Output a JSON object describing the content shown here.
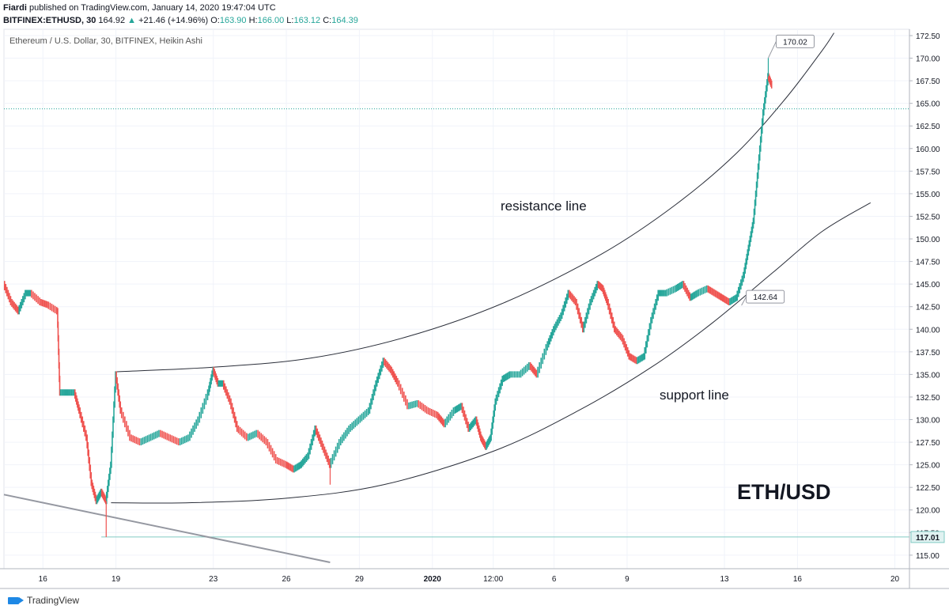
{
  "header": {
    "author": "Fiardi",
    "published": "published on TradingView.com, January 14, 2020 19:47:04 UTC"
  },
  "quote": {
    "symbol": "BITFINEX:ETHUSD, 30",
    "last": "164.92",
    "arrow": "▲",
    "change": "+21.46 (+14.96%)",
    "o_label": "O:",
    "o_value": "163.90",
    "h_label": "H:",
    "h_value": "166.00",
    "l_label": "L:",
    "l_value": "163.12",
    "c_label": "C:",
    "c_value": "164.39"
  },
  "footer": {
    "brand": "TradingView"
  },
  "colors": {
    "up": "#26a69a",
    "down": "#ef5350",
    "grid": "#f0f3fa",
    "price_line": "#26a69a",
    "axis_text": "#131722"
  },
  "chart_data": {
    "type": "line",
    "title": "Ethereum / U.S. Dollar, 30, BITFINEX, Heikin Ashi",
    "watermark": "ETH/USD",
    "ylim": [
      113.5,
      173.2
    ],
    "y_ticks": [
      "115.00",
      "117.50",
      "120.00",
      "122.50",
      "125.00",
      "127.50",
      "130.00",
      "132.50",
      "135.00",
      "137.50",
      "140.00",
      "142.50",
      "145.00",
      "147.50",
      "150.00",
      "152.50",
      "155.00",
      "157.50",
      "160.00",
      "162.50",
      "165.00",
      "167.50",
      "170.00",
      "172.50"
    ],
    "x_ticks": [
      {
        "label": "16",
        "day": 1
      },
      {
        "label": "19",
        "day": 4
      },
      {
        "label": "23",
        "day": 8
      },
      {
        "label": "26",
        "day": 11
      },
      {
        "label": "29",
        "day": 14
      },
      {
        "label": "2020",
        "day": 17
      },
      {
        "label": "12:00",
        "day": 19.5
      },
      {
        "label": "6",
        "day": 22
      },
      {
        "label": "9",
        "day": 25
      },
      {
        "label": "13",
        "day": 29
      },
      {
        "label": "16",
        "day": 32
      },
      {
        "label": "20",
        "day": 36
      }
    ],
    "x_range": [
      -0.6,
      36.6
    ],
    "series": [
      {
        "values": [
          [
            -0.6,
            145
          ],
          [
            -0.3,
            143
          ],
          [
            0,
            142
          ],
          [
            0.3,
            144
          ],
          [
            0.5,
            144
          ],
          [
            0.9,
            143
          ],
          [
            1.2,
            142.7
          ],
          [
            1.6,
            142
          ],
          [
            1.7,
            133
          ],
          [
            2.0,
            133
          ],
          [
            2.3,
            133
          ],
          [
            2.5,
            131
          ],
          [
            2.8,
            128
          ],
          [
            3.0,
            123
          ],
          [
            3.2,
            121
          ],
          [
            3.4,
            122
          ],
          [
            3.6,
            121
          ],
          [
            3.8,
            125
          ],
          [
            4.0,
            135
          ],
          [
            4.2,
            131
          ],
          [
            4.6,
            128
          ],
          [
            5.0,
            127.5
          ],
          [
            5.4,
            128
          ],
          [
            5.8,
            128.5
          ],
          [
            6.2,
            128
          ],
          [
            6.6,
            127.5
          ],
          [
            7.0,
            128
          ],
          [
            7.4,
            130
          ],
          [
            7.8,
            133
          ],
          [
            8.0,
            135.5
          ],
          [
            8.2,
            134
          ],
          [
            8.4,
            134
          ],
          [
            8.7,
            132
          ],
          [
            9.0,
            129
          ],
          [
            9.4,
            128
          ],
          [
            9.8,
            128.5
          ],
          [
            10.2,
            127.5
          ],
          [
            10.6,
            125.5
          ],
          [
            11.0,
            125
          ],
          [
            11.3,
            124.5
          ],
          [
            11.6,
            125
          ],
          [
            11.9,
            126
          ],
          [
            12.2,
            129
          ],
          [
            12.5,
            127
          ],
          [
            12.8,
            125
          ],
          [
            13.2,
            127.5
          ],
          [
            13.6,
            129
          ],
          [
            14.0,
            130
          ],
          [
            14.4,
            131
          ],
          [
            14.7,
            134
          ],
          [
            15.0,
            136.5
          ],
          [
            15.3,
            135.5
          ],
          [
            15.6,
            134
          ],
          [
            16.0,
            131.5
          ],
          [
            16.4,
            131.8
          ],
          [
            16.8,
            131
          ],
          [
            17.2,
            130.5
          ],
          [
            17.5,
            129.5
          ],
          [
            17.9,
            131
          ],
          [
            18.2,
            131.5
          ],
          [
            18.5,
            129
          ],
          [
            18.8,
            130
          ],
          [
            19.0,
            128
          ],
          [
            19.2,
            127
          ],
          [
            19.4,
            128
          ],
          [
            19.6,
            132
          ],
          [
            19.9,
            134.5
          ],
          [
            20.2,
            135
          ],
          [
            20.6,
            135
          ],
          [
            21.0,
            136
          ],
          [
            21.3,
            135
          ],
          [
            21.7,
            138
          ],
          [
            22.0,
            140
          ],
          [
            22.3,
            141.5
          ],
          [
            22.6,
            144
          ],
          [
            22.9,
            143
          ],
          [
            23.2,
            140
          ],
          [
            23.5,
            143
          ],
          [
            23.8,
            145
          ],
          [
            24.0,
            144.5
          ],
          [
            24.2,
            143
          ],
          [
            24.5,
            140
          ],
          [
            24.8,
            139
          ],
          [
            25.1,
            137
          ],
          [
            25.4,
            136.5
          ],
          [
            25.7,
            137
          ],
          [
            26.0,
            141
          ],
          [
            26.3,
            144
          ],
          [
            26.6,
            144
          ],
          [
            27.0,
            144.5
          ],
          [
            27.3,
            145
          ],
          [
            27.6,
            143.5
          ],
          [
            27.9,
            144
          ],
          [
            28.3,
            144.5
          ],
          [
            28.6,
            144
          ],
          [
            28.9,
            143.5
          ],
          [
            29.2,
            143
          ],
          [
            29.5,
            143.5
          ],
          [
            29.8,
            146
          ],
          [
            30.0,
            149
          ],
          [
            30.2,
            152
          ],
          [
            30.4,
            158
          ],
          [
            30.6,
            164
          ],
          [
            30.8,
            168
          ],
          [
            30.95,
            167
          ]
        ]
      }
    ],
    "annotations": [
      {
        "text": "170.02",
        "day": 30.8,
        "value": 170.02
      },
      {
        "text": "142.64",
        "day": 29.7,
        "value": 142.64
      },
      {
        "text": "117.01",
        "axis_value": 117.01
      },
      {
        "text": "resistance line"
      },
      {
        "text": "support line"
      }
    ],
    "resistance_line": [
      [
        4.0,
        135.3
      ],
      [
        8.0,
        135.8
      ],
      [
        12.0,
        136.8
      ],
      [
        16.0,
        139.2
      ],
      [
        20.0,
        143.0
      ],
      [
        24.0,
        148.4
      ],
      [
        27.0,
        153.8
      ],
      [
        29.5,
        159.5
      ],
      [
        31.5,
        165.5
      ],
      [
        33.0,
        170.8
      ],
      [
        33.5,
        172.8
      ]
    ],
    "support_line": [
      [
        3.8,
        120.8
      ],
      [
        7.0,
        120.8
      ],
      [
        11.0,
        121.3
      ],
      [
        15.0,
        122.8
      ],
      [
        19.5,
        126.5
      ],
      [
        23.0,
        131.0
      ],
      [
        26.0,
        135.8
      ],
      [
        28.5,
        140.7
      ],
      [
        31.0,
        146.3
      ],
      [
        33.0,
        150.8
      ],
      [
        35.0,
        154.0
      ]
    ],
    "trend_line": [
      [
        -0.6,
        121.7
      ],
      [
        12.8,
        114.2
      ]
    ],
    "last_price": 164.39,
    "level_117": 117.01,
    "grid": true
  }
}
